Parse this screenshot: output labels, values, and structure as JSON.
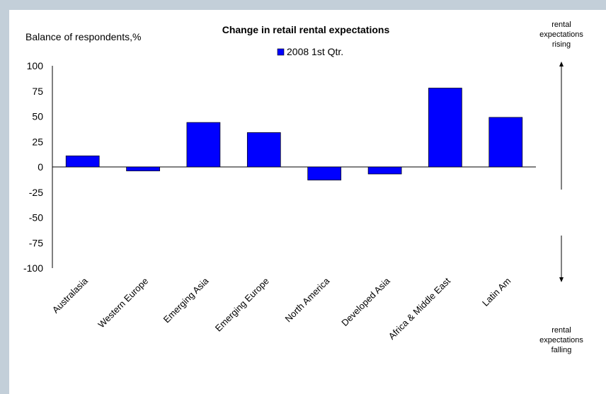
{
  "chart_data": {
    "type": "bar",
    "title": "Change in retail rental expectations",
    "ylabel": "Balance of respondents,%",
    "xlabel": "",
    "ylim": [
      -100,
      100
    ],
    "yticks": [
      100,
      75,
      50,
      25,
      0,
      -25,
      -50,
      -75,
      -100
    ],
    "categories": [
      "Australasia",
      "Western Europe",
      "Emerging Asia",
      "Emerging Europe",
      "North America",
      "Developed Asia",
      "Africa & Middle East",
      "Latin Am"
    ],
    "series": [
      {
        "name": "2008 1st Qtr.",
        "color": "#0000ff",
        "values": [
          11,
          -4,
          44,
          34,
          -13,
          -7,
          78,
          49
        ]
      }
    ],
    "legend": "top-center",
    "grid": false,
    "annotations": {
      "rising": [
        "rental",
        "expectations",
        "rising"
      ],
      "falling": [
        "rental",
        "expectations",
        "falling"
      ]
    }
  }
}
